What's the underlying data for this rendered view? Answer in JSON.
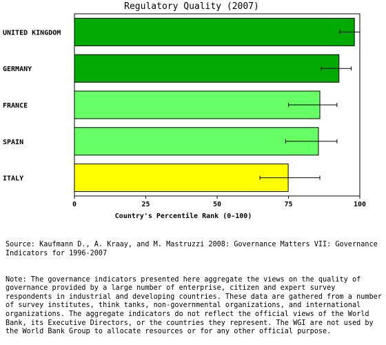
{
  "chart_data": {
    "type": "bar",
    "orientation": "horizontal",
    "title": "Regulatory Quality (2007)",
    "xlabel": "Country's Percentile Rank (0-100)",
    "ylabel": "",
    "xlim": [
      0,
      100
    ],
    "xticks": [
      0,
      25,
      50,
      75,
      100
    ],
    "grid": false,
    "categories": [
      "UNITED KINGDOM",
      "GERMANY",
      "FRANCE",
      "SPAIN",
      "ITALY"
    ],
    "values": [
      98.1,
      92.7,
      86.0,
      85.5,
      74.9
    ],
    "error_low": [
      93.0,
      86.5,
      75.0,
      74.0,
      65.0
    ],
    "error_high": [
      100.0,
      97.0,
      92.0,
      92.0,
      86.0
    ],
    "bar_colors": [
      "#00aa00",
      "#00aa00",
      "#66ff66",
      "#66ff66",
      "#ffff00"
    ]
  },
  "notes": {
    "source": "Source: Kaufmann D., A. Kraay, and M. Mastruzzi 2008: Governance Matters VII: Governance Indicators for 1996-2007",
    "note": "Note: The governance indicators presented here aggregate the views on the quality of governance provided by a large number of enterprise, citizen and expert survey respondents in industrial and developing countries. These data are gathered from a number of survey institutes, think tanks, non-governmental organizations, and international organizations. The aggregate indicators do not reflect the official views of the World Bank, its Executive Directors, or the countries they represent. The WGI are not used by the World Bank Group to allocate resources or for any other official purpose."
  }
}
